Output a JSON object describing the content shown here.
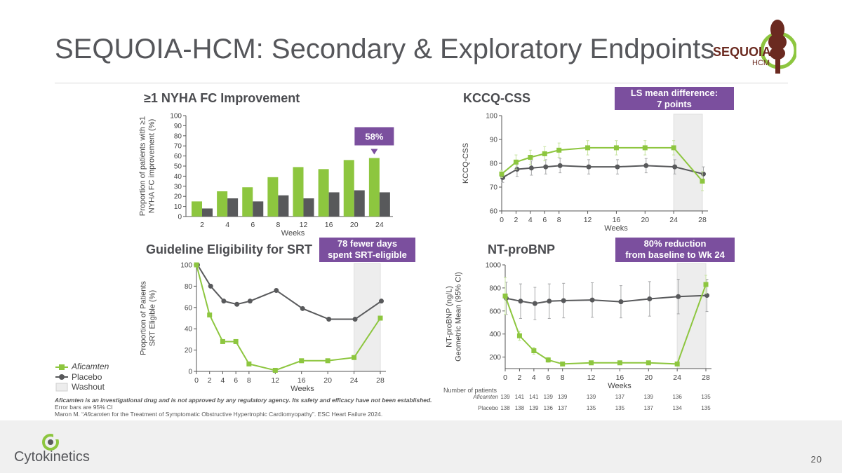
{
  "slide": {
    "title": "SEQUOIA-HCM: Secondary & Exploratory Endpoints",
    "page_number": "20",
    "company_logo_text": "Cytokinetics",
    "trial_logo_text": "SEQUOIA",
    "trial_logo_subtext": "HCM"
  },
  "colors": {
    "aficamten": "#8dc63f",
    "placebo": "#58595b",
    "washout": "#ededed",
    "callout": "#7b4f9e",
    "title": "#55565a"
  },
  "panels": {
    "nyha": {
      "title": "≥1 NYHA FC Improvement",
      "callout": "58%"
    },
    "kccq": {
      "title": "KCCQ-CSS",
      "callout_line1": "LS mean difference:",
      "callout_line2": "7 points"
    },
    "srt": {
      "title": "Guideline Eligibility for SRT",
      "callout_line1": "78 fewer days",
      "callout_line2": "spent SRT-eligible"
    },
    "ntprobnp": {
      "title": "NT-proBNP",
      "callout_line1": "80% reduction",
      "callout_line2": "from baseline to Wk 24"
    }
  },
  "legend": {
    "aficamten": "Aficamten",
    "placebo": "Placebo",
    "washout": "Washout"
  },
  "number_of_patients": {
    "label": "Number of patients",
    "rows": [
      {
        "name": "Aficamten",
        "values": [
          "139",
          "141",
          "141",
          "139",
          "139",
          "139",
          "137",
          "139",
          "136",
          "135"
        ]
      },
      {
        "name": "Placebo",
        "values": [
          "138",
          "138",
          "139",
          "136",
          "137",
          "135",
          "135",
          "137",
          "134",
          "135"
        ]
      }
    ]
  },
  "footnotes": {
    "line1": "Aficamten is an investigational drug and is not approved by any regulatory agency. Its safety and efficacy have not been established.",
    "line2": "Error bars are 95% CI",
    "line3_a": "Maron M. “",
    "line3_italic": "Aficamten",
    "line3_b": " for the Treatment of Symptomatic Obstructive Hypertrophic Cardiomyopathy”. ESC Heart Failure 2024."
  },
  "chart_data": [
    {
      "id": "nyha",
      "type": "bar",
      "title": "≥1 NYHA FC Improvement",
      "xlabel": "Weeks",
      "ylabel": "Proportion of patients with ≥1 NYHA FC improvement (%)",
      "ylabel_lines": [
        "Proportion of patients with ≥1",
        "NYHA FC improvement (%)"
      ],
      "categories": [
        "2",
        "4",
        "6",
        "8",
        "12",
        "16",
        "20",
        "24"
      ],
      "yticks": [
        0,
        10,
        20,
        30,
        40,
        50,
        60,
        70,
        80,
        90,
        100
      ],
      "ylim": [
        0,
        100
      ],
      "series": [
        {
          "name": "Aficamten",
          "values": [
            15,
            25,
            29,
            39,
            49,
            47,
            56,
            58
          ]
        },
        {
          "name": "Placebo",
          "values": [
            8,
            18,
            15,
            21,
            18,
            24,
            26,
            24
          ]
        }
      ],
      "annotation": "58%"
    },
    {
      "id": "kccq",
      "type": "line",
      "title": "KCCQ-CSS",
      "xlabel": "Weeks",
      "ylabel": "KCCQ-CSS",
      "x": [
        0,
        2,
        4,
        6,
        8,
        12,
        16,
        20,
        24,
        28
      ],
      "xticks": [
        0,
        2,
        4,
        6,
        8,
        12,
        16,
        20,
        24,
        28
      ],
      "yticks": [
        60,
        70,
        80,
        90,
        100
      ],
      "ylim": [
        60,
        100
      ],
      "washout": [
        24,
        28
      ],
      "series": [
        {
          "name": "Aficamten",
          "values": [
            75.5,
            80.5,
            82.5,
            84,
            85.5,
            86.5,
            86.5,
            86.5,
            86.5,
            72.5
          ],
          "err": [
            1.5,
            3,
            3,
            3,
            3,
            3,
            3,
            3,
            3,
            4
          ]
        },
        {
          "name": "Placebo",
          "values": [
            74,
            77.5,
            78,
            78.5,
            79,
            78.5,
            78.5,
            79,
            78.5,
            75.5
          ],
          "err": [
            2,
            3,
            3,
            3,
            3,
            3,
            3,
            3,
            3,
            3
          ]
        }
      ]
    },
    {
      "id": "srt",
      "type": "line",
      "title": "Guideline Eligibility for SRT",
      "xlabel": "Weeks",
      "ylabel": "Proportion of Patients SRT Eligible (%)",
      "ylabel_lines": [
        "Proportion of Patients",
        "SRT Eligible (%)"
      ],
      "x": [
        0,
        2,
        4,
        6,
        8,
        12,
        16,
        20,
        24,
        28
      ],
      "xticks": [
        0,
        2,
        4,
        6,
        8,
        12,
        16,
        20,
        24,
        28
      ],
      "yticks": [
        0,
        20,
        40,
        60,
        80,
        100
      ],
      "ylim": [
        0,
        100
      ],
      "washout": [
        24,
        28
      ],
      "series": [
        {
          "name": "Aficamten",
          "values": [
            100,
            53,
            28,
            28,
            7,
            1,
            10,
            10,
            13,
            50
          ]
        },
        {
          "name": "Placebo",
          "values": [
            100,
            80,
            66,
            63,
            66,
            76,
            59,
            49,
            49,
            66
          ]
        }
      ]
    },
    {
      "id": "ntprobnp",
      "type": "line",
      "title": "NT-proBNP",
      "xlabel": "Weeks",
      "ylabel": "NT-proBNP (ng/L) Geometric Mean (95% CI)",
      "ylabel_lines": [
        "NT-proBNP (ng/L)",
        "Geometric Mean (95% CI)"
      ],
      "x": [
        0,
        2,
        4,
        6,
        8,
        12,
        16,
        20,
        24,
        28
      ],
      "xticks": [
        0,
        2,
        4,
        6,
        8,
        12,
        16,
        20,
        24,
        28
      ],
      "yticks": [
        200,
        400,
        600,
        800,
        1000
      ],
      "ylim": [
        100,
        1000
      ],
      "washout": [
        24,
        28
      ],
      "series": [
        {
          "name": "Aficamten",
          "values": [
            730,
            385,
            255,
            175,
            140,
            150,
            150,
            150,
            140,
            830
          ],
          "err": [
            160,
            40,
            30,
            20,
            10,
            10,
            10,
            10,
            10,
            80
          ]
        },
        {
          "name": "Placebo",
          "values": [
            710,
            685,
            665,
            685,
            690,
            695,
            680,
            705,
            725,
            735
          ],
          "err": [
            140,
            150,
            140,
            150,
            150,
            150,
            140,
            150,
            150,
            140
          ]
        }
      ]
    }
  ]
}
